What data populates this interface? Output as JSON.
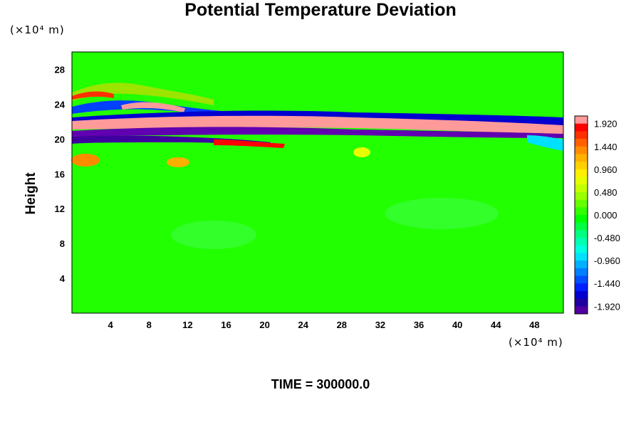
{
  "chart_data": {
    "type": "heatmap",
    "title": "Potential Temperature Deviation",
    "ylabel": "Height",
    "y_unit": "(×10⁴ m)",
    "x_unit": "(×10⁴ m)",
    "xlim": [
      0,
      51
    ],
    "ylim": [
      0,
      30
    ],
    "xticks": [
      4,
      8,
      12,
      16,
      20,
      24,
      28,
      32,
      36,
      40,
      44,
      48
    ],
    "yticks": [
      4,
      8,
      12,
      16,
      20,
      24,
      28
    ],
    "colorbar": {
      "min": -2.08,
      "max": 2.08,
      "step": 0.16,
      "tick_labels": [
        "1.920",
        "1.440",
        "0.960",
        "0.480",
        "0.000",
        "-0.480",
        "-0.960",
        "-1.440",
        "-1.920"
      ],
      "colors_high_to_low": [
        "#ff9a9a",
        "#ff0000",
        "#ff3000",
        "#ff6000",
        "#ff8c00",
        "#ffb000",
        "#ffd000",
        "#ffee00",
        "#e6ff00",
        "#c4ff00",
        "#9aff00",
        "#66ff00",
        "#33ff00",
        "#00ff00",
        "#00ff40",
        "#00ff80",
        "#00ffb0",
        "#00ffe0",
        "#00e0ff",
        "#00b0ff",
        "#0080ff",
        "#0050ff",
        "#0020ff",
        "#0000d0",
        "#2000a0",
        "#5000a0"
      ]
    },
    "footer": "TIME = 300000.0"
  }
}
